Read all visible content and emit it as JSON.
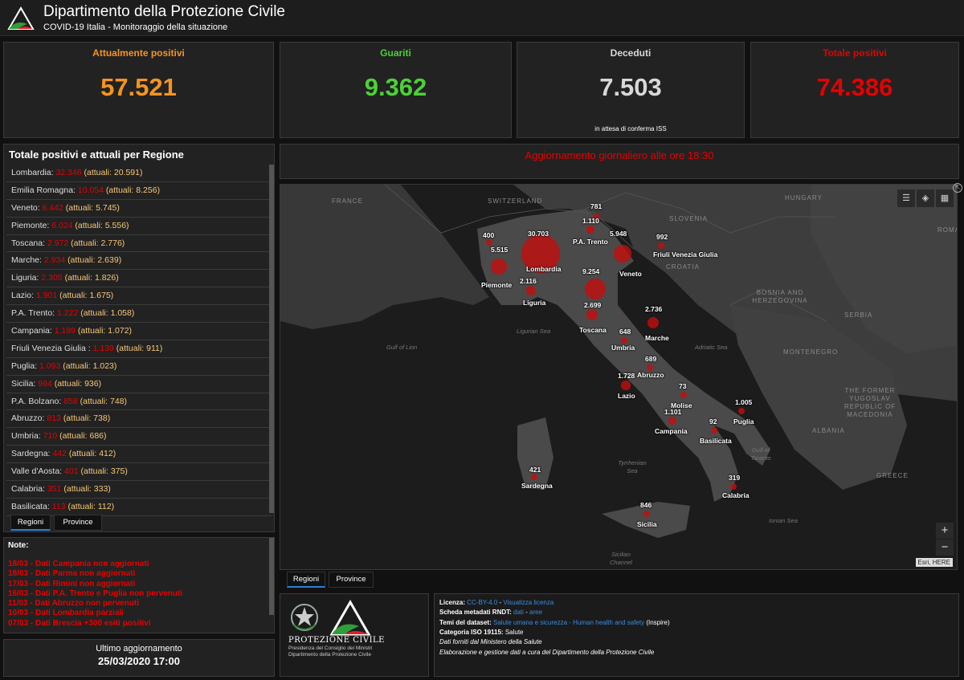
{
  "header": {
    "title": "Dipartimento della Protezione Civile",
    "subtitle": "COVID-19 Italia - Monitoraggio della situazione"
  },
  "cards": [
    {
      "label": "Attualmente positivi",
      "value": "57.521",
      "color": "#f7941d",
      "note": ""
    },
    {
      "label": "Guariti",
      "value": "9.362",
      "color": "#4cd137",
      "note": ""
    },
    {
      "label": "Deceduti",
      "value": "7.503",
      "color": "#d8d8d8",
      "note": "in attesa di conferma ISS"
    },
    {
      "label": "Totale positivi",
      "value": "74.386",
      "color": "#e60000",
      "note": ""
    }
  ],
  "regions_panel": {
    "title": "Totale positivi e attuali per Regione",
    "attuali_prefix": "(attuali: ",
    "attuali_suffix": ")",
    "rows": [
      {
        "name": "Lombardia:",
        "total": "32.346",
        "current": "20.591"
      },
      {
        "name": "Emilia Romagna:",
        "total": "10.054",
        "current": "8.256"
      },
      {
        "name": "Veneto:",
        "total": "6.442",
        "current": "5.745"
      },
      {
        "name": "Piemonte:",
        "total": "6.024",
        "current": "5.556"
      },
      {
        "name": "Toscana:",
        "total": "2.972",
        "current": "2.776"
      },
      {
        "name": "Marche:",
        "total": "2.934",
        "current": "2.639"
      },
      {
        "name": "Liguria:",
        "total": "2.305",
        "current": "1.826"
      },
      {
        "name": "Lazio:",
        "total": "1.901",
        "current": "1.675"
      },
      {
        "name": "P.A. Trento:",
        "total": "1.222",
        "current": "1.058"
      },
      {
        "name": "Campania:",
        "total": "1.199",
        "current": "1.072"
      },
      {
        "name": "Friuli Venezia Giulia :",
        "total": "1.139",
        "current": "911"
      },
      {
        "name": "Puglia:",
        "total": "1.093",
        "current": "1.023"
      },
      {
        "name": "Sicilia:",
        "total": "994",
        "current": "936"
      },
      {
        "name": "P.A. Bolzano:",
        "total": "858",
        "current": "748"
      },
      {
        "name": "Abruzzo:",
        "total": "813",
        "current": "738"
      },
      {
        "name": "Umbria:",
        "total": "710",
        "current": "686"
      },
      {
        "name": "Sardegna:",
        "total": "442",
        "current": "412"
      },
      {
        "name": "Valle d'Aosta:",
        "total": "401",
        "current": "375"
      },
      {
        "name": "Calabria:",
        "total": "351",
        "current": "333"
      },
      {
        "name": "Basilicata:",
        "total": "113",
        "current": "112"
      }
    ],
    "tabs": [
      "Regioni",
      "Province"
    ]
  },
  "notes": {
    "title": "Note:",
    "items": [
      "18/03 - Dati Campania non aggiornati",
      "18/03 - Dati Parma non aggiornati",
      "17/03 - Dati Rimini non aggiornati",
      "16/03 - Dati P.A. Trento e Puglia non pervenuti",
      "11/03 - Dati Abruzzo non pervenuti",
      "10/03 - Dati Lombardia parziali",
      "07/03 - Dati Brescia +300 esiti positivi"
    ]
  },
  "last_update": {
    "label": "Ultimo aggiornamento",
    "value": "25/03/2020 17:00"
  },
  "banner": "Aggiornamento giornaliero alle ore 18:30",
  "map": {
    "countries": [
      "FRANCE",
      "SWITZERLAND",
      "SLOVENIA",
      "HUNGARY",
      "ROMA",
      "CROATIA",
      "BOSNIA AND HERZEGOVINA",
      "SERBIA",
      "MONTENEGRO",
      "THE FORMER YUGOSLAV REPUBLIC OF MACEDONIA",
      "ALBANIA",
      "GREECE"
    ],
    "seas": [
      "Ligurian Sea",
      "Gulf of Lion",
      "Adriatic Sea",
      "Tyrrhenian Sea",
      "Gulf of Taranto",
      "Ionian Sea",
      "Sicilian Channel"
    ],
    "markers": [
      {
        "value": "781",
        "name": "",
        "magnitude": 781
      },
      {
        "value": "1.110",
        "name": "P.A. Trento",
        "magnitude": 1110
      },
      {
        "value": "400",
        "name": "",
        "magnitude": 400
      },
      {
        "value": "5.515",
        "name": "Piemonte",
        "magnitude": 5515
      },
      {
        "value": "30.703",
        "name": "Lombardia",
        "magnitude": 30703
      },
      {
        "value": "5.948",
        "name": "Veneto",
        "magnitude": 5948
      },
      {
        "value": "992",
        "name": "Friuli Venezia Giulia",
        "magnitude": 992
      },
      {
        "value": "2.116",
        "name": "Liguria",
        "magnitude": 2116
      },
      {
        "value": "9.254",
        "name": "",
        "magnitude": 9254
      },
      {
        "value": "2.699",
        "name": "Toscana",
        "magnitude": 2699
      },
      {
        "value": "2.736",
        "name": "Marche",
        "magnitude": 2736
      },
      {
        "value": "648",
        "name": "Umbria",
        "magnitude": 648
      },
      {
        "value": "689",
        "name": "Abruzzo",
        "magnitude": 689
      },
      {
        "value": "1.728",
        "name": "Lazio",
        "magnitude": 1728
      },
      {
        "value": "73",
        "name": "Molise",
        "magnitude": 73
      },
      {
        "value": "1.005",
        "name": "Puglia",
        "magnitude": 1005
      },
      {
        "value": "1.101",
        "name": "Campania",
        "magnitude": 1101
      },
      {
        "value": "92",
        "name": "Basilicata",
        "magnitude": 92
      },
      {
        "value": "421",
        "name": "Sardegna",
        "magnitude": 421
      },
      {
        "value": "319",
        "name": "Calabria",
        "magnitude": 319
      },
      {
        "value": "846",
        "name": "Sicilia",
        "magnitude": 846
      }
    ],
    "toolbar_icons": [
      "list-icon",
      "layers-icon",
      "basemap-gallery-icon"
    ],
    "zoom_in": "+",
    "zoom_out": "−",
    "attribution": "Esri, HERE",
    "tabs": [
      "Regioni",
      "Province"
    ]
  },
  "footer_logo": {
    "name": "PROTEZIONE CIVILE",
    "line1": "Presidenza del Consiglio dei Ministri",
    "line2": "Dipartimento della Protezione Civile"
  },
  "metadata": {
    "licenza_label": "Licenza:",
    "licenza_link1": "CC-BY-4.0",
    "licenza_sep": " - ",
    "licenza_link2": "Visualizza licenza",
    "scheda_label": "Scheda metadati RNDT:",
    "scheda_link1": "dati",
    "scheda_sep": " - ",
    "scheda_link2": "aree",
    "temi_label": "Temi del dataset:",
    "temi_link": "Salute umana e sicurezza - Human health and safety",
    "temi_suffix": " (Inspire)",
    "iso_label": "Categoria ISO 19115:",
    "iso_value": " Salute",
    "source": "Dati forniti dal Ministero della Salute",
    "elaboration": "Elaborazione e gestione dati a cura del Dipartimento della Protezione Civile"
  }
}
